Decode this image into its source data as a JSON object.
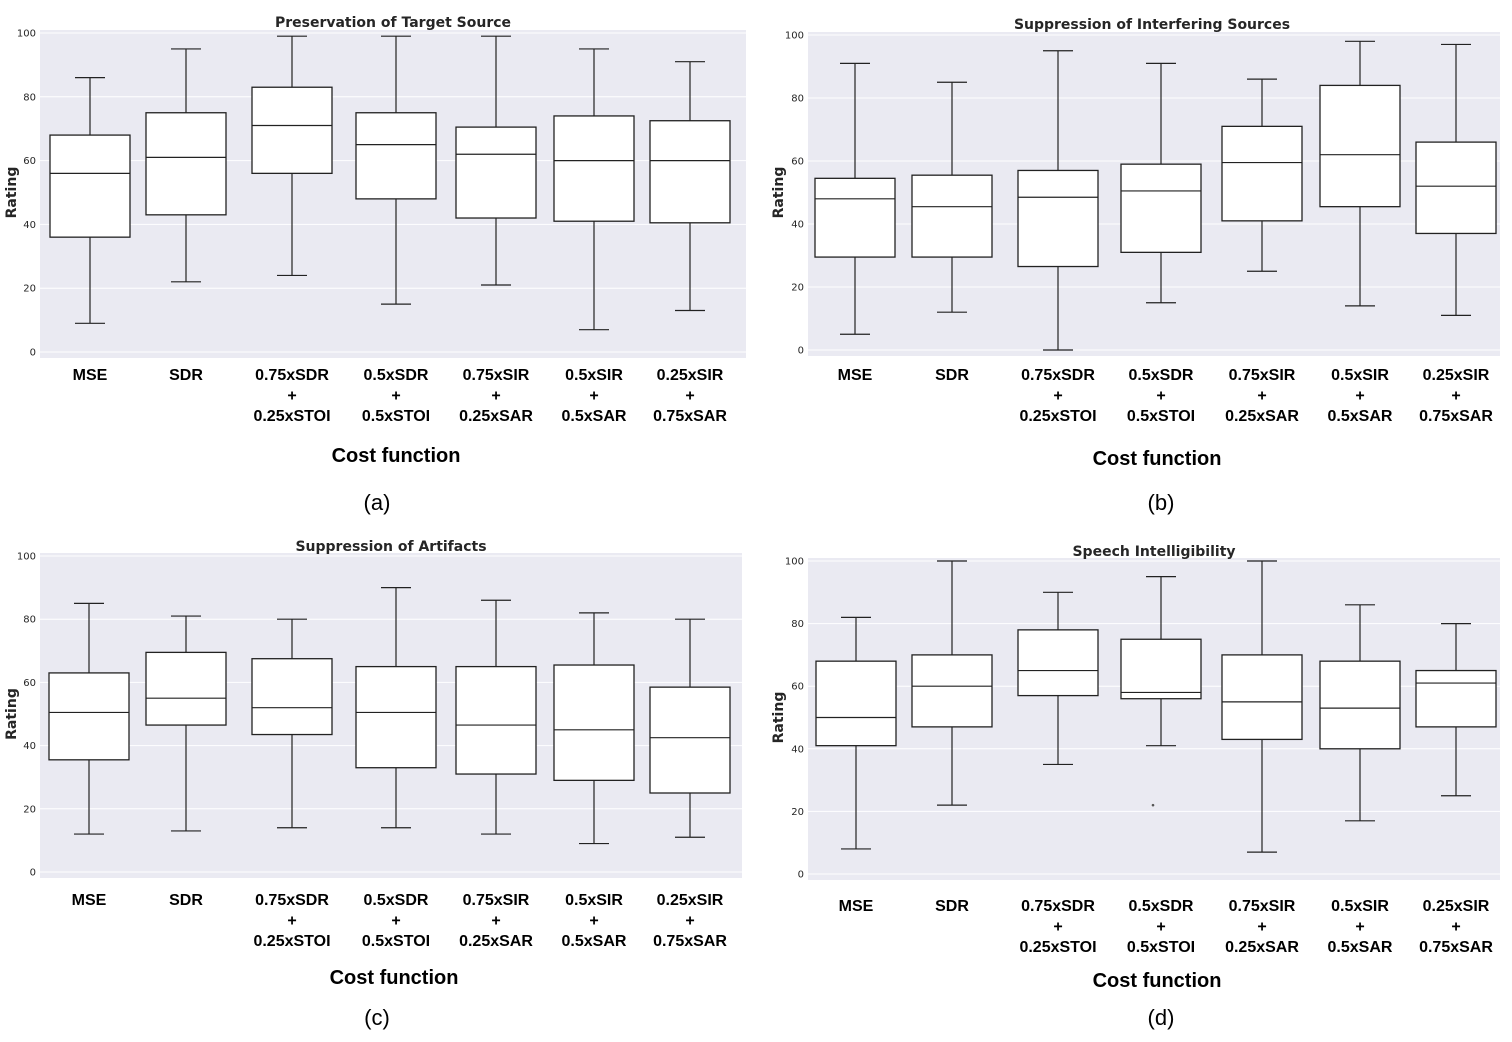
{
  "chart_data": [
    {
      "type": "box",
      "panel_label": "(a)",
      "title": "Preservation of Target Source",
      "xlabel": "Cost function",
      "ylabel": "Rating",
      "ylim": [
        0,
        100
      ],
      "yticks": [
        "0",
        "20",
        "40",
        "60",
        "80",
        "100"
      ],
      "grid": true,
      "categories": [
        [
          "MSE"
        ],
        [
          "SDR"
        ],
        [
          "0.75xSDR",
          "+",
          "0.25xSTOI"
        ],
        [
          "0.5xSDR",
          "+",
          "0.5xSTOI"
        ],
        [
          "0.75xSIR",
          "+",
          "0.25xSAR"
        ],
        [
          "0.5xSIR",
          "+",
          "0.5xSAR"
        ],
        [
          "0.25xSIR",
          "+",
          "0.75xSAR"
        ]
      ],
      "boxes": [
        {
          "whislo": 9,
          "q1": 36,
          "med": 56,
          "q3": 68,
          "whishi": 86
        },
        {
          "whislo": 22,
          "q1": 43,
          "med": 61,
          "q3": 75,
          "whishi": 95
        },
        {
          "whislo": 24,
          "q1": 56,
          "med": 71,
          "q3": 83,
          "whishi": 99
        },
        {
          "whislo": 15,
          "q1": 48,
          "med": 65,
          "q3": 75,
          "whishi": 99
        },
        {
          "whislo": 21,
          "q1": 42,
          "med": 62,
          "q3": 70.5,
          "whishi": 99
        },
        {
          "whislo": 7,
          "q1": 41,
          "med": 60,
          "q3": 74,
          "whishi": 95
        },
        {
          "whislo": 13,
          "q1": 40.5,
          "med": 60,
          "q3": 72.5,
          "whishi": 91
        }
      ]
    },
    {
      "type": "box",
      "panel_label": "(b)",
      "title": "Suppression of Interfering Sources",
      "xlabel": "Cost function",
      "ylabel": "Rating",
      "ylim": [
        0,
        100
      ],
      "yticks": [
        "0",
        "20",
        "40",
        "60",
        "80",
        "100"
      ],
      "grid": true,
      "categories": [
        [
          "MSE"
        ],
        [
          "SDR"
        ],
        [
          "0.75xSDR",
          "+",
          "0.25xSTOI"
        ],
        [
          "0.5xSDR",
          "+",
          "0.5xSTOI"
        ],
        [
          "0.75xSIR",
          "+",
          "0.25xSAR"
        ],
        [
          "0.5xSIR",
          "+",
          "0.5xSAR"
        ],
        [
          "0.25xSIR",
          "+",
          "0.75xSAR"
        ]
      ],
      "boxes": [
        {
          "whislo": 5,
          "q1": 29.5,
          "med": 48,
          "q3": 54.5,
          "whishi": 91
        },
        {
          "whislo": 12,
          "q1": 29.5,
          "med": 45.5,
          "q3": 55.5,
          "whishi": 85
        },
        {
          "whislo": 0,
          "q1": 26.5,
          "med": 48.5,
          "q3": 57,
          "whishi": 95
        },
        {
          "whislo": 15,
          "q1": 31,
          "med": 50.5,
          "q3": 59,
          "whishi": 91
        },
        {
          "whislo": 25,
          "q1": 41,
          "med": 59.5,
          "q3": 71,
          "whishi": 86
        },
        {
          "whislo": 14,
          "q1": 45.5,
          "med": 62,
          "q3": 84,
          "whishi": 98
        },
        {
          "whislo": 11,
          "q1": 37,
          "med": 52,
          "q3": 66,
          "whishi": 97
        }
      ]
    },
    {
      "type": "box",
      "panel_label": "(c)",
      "title": "Suppression of Artifacts",
      "xlabel": "Cost function",
      "ylabel": "Rating",
      "ylim": [
        0,
        100
      ],
      "yticks": [
        "0",
        "20",
        "40",
        "60",
        "80",
        "100"
      ],
      "grid": true,
      "categories": [
        [
          "MSE"
        ],
        [
          "SDR"
        ],
        [
          "0.75xSDR",
          "+",
          "0.25xSTOI"
        ],
        [
          "0.5xSDR",
          "+",
          "0.5xSTOI"
        ],
        [
          "0.75xSIR",
          "+",
          "0.25xSAR"
        ],
        [
          "0.5xSIR",
          "+",
          "0.5xSAR"
        ],
        [
          "0.25xSIR",
          "+",
          "0.75xSAR"
        ]
      ],
      "boxes": [
        {
          "whislo": 12,
          "q1": 35.5,
          "med": 50.5,
          "q3": 63,
          "whishi": 85
        },
        {
          "whislo": 13,
          "q1": 46.5,
          "med": 55,
          "q3": 69.5,
          "whishi": 81
        },
        {
          "whislo": 14,
          "q1": 43.5,
          "med": 52,
          "q3": 67.5,
          "whishi": 80
        },
        {
          "whislo": 14,
          "q1": 33,
          "med": 50.5,
          "q3": 65,
          "whishi": 90
        },
        {
          "whislo": 12,
          "q1": 31,
          "med": 46.5,
          "q3": 65,
          "whishi": 86
        },
        {
          "whislo": 9,
          "q1": 29,
          "med": 45,
          "q3": 65.5,
          "whishi": 82
        },
        {
          "whislo": 11,
          "q1": 25,
          "med": 42.5,
          "q3": 58.5,
          "whishi": 80
        }
      ]
    },
    {
      "type": "box",
      "panel_label": "(d)",
      "title": "Speech Intelligibility",
      "xlabel": "Cost function",
      "ylabel": "Rating",
      "ylim": [
        0,
        100
      ],
      "yticks": [
        "0",
        "20",
        "40",
        "60",
        "80",
        "100"
      ],
      "grid": true,
      "categories": [
        [
          "MSE"
        ],
        [
          "SDR"
        ],
        [
          "0.75xSDR",
          "+",
          "0.25xSTOI"
        ],
        [
          "0.5xSDR",
          "+",
          "0.5xSTOI"
        ],
        [
          "0.75xSIR",
          "+",
          "0.25xSAR"
        ],
        [
          "0.5xSIR",
          "+",
          "0.5xSAR"
        ],
        [
          "0.25xSIR",
          "+",
          "0.75xSAR"
        ]
      ],
      "boxes": [
        {
          "whislo": 8,
          "q1": 41,
          "med": 50,
          "q3": 68,
          "whishi": 82
        },
        {
          "whislo": 22,
          "q1": 47,
          "med": 60,
          "q3": 70,
          "whishi": 100
        },
        {
          "whislo": 35,
          "q1": 57,
          "med": 65,
          "q3": 78,
          "whishi": 90
        },
        {
          "whislo": 41,
          "q1": 56,
          "med": 58,
          "q3": 75,
          "whishi": 95,
          "fliers": [
            22
          ]
        },
        {
          "whislo": 7,
          "q1": 43,
          "med": 55,
          "q3": 70,
          "whishi": 100
        },
        {
          "whislo": 17,
          "q1": 40,
          "med": 53,
          "q3": 68,
          "whishi": 86
        },
        {
          "whislo": 25,
          "q1": 47,
          "med": 61,
          "q3": 65,
          "whishi": 80
        }
      ]
    }
  ]
}
